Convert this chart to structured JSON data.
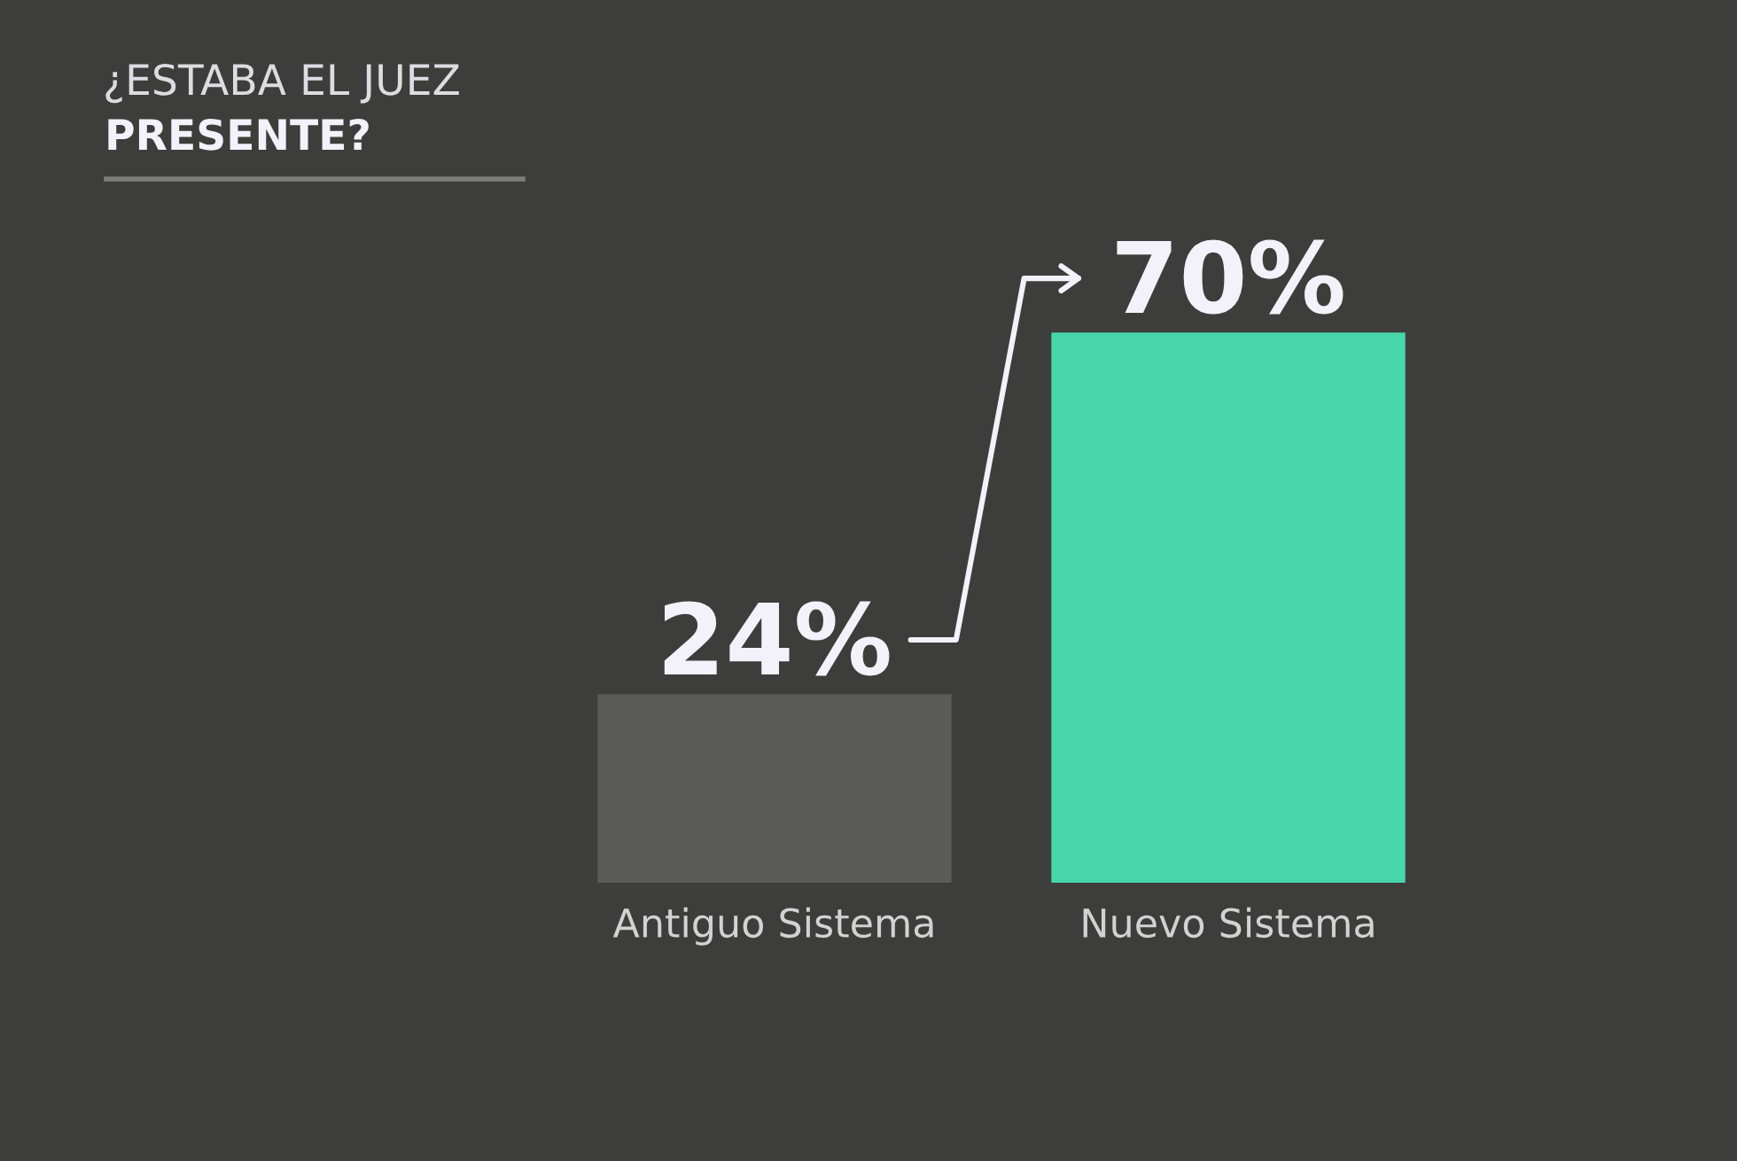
{
  "chart_data": {
    "type": "bar",
    "title": "¿ESTABA EL JUEZ",
    "subtitle": "PRESENTE?",
    "categories": [
      "Antiguo Sistema",
      "Nuevo Sistema"
    ],
    "values": [
      24,
      70
    ],
    "colors": [
      "#5a5b58",
      "#46d6aa"
    ],
    "value_labels": [
      "24%",
      "70%"
    ],
    "tick_labels": "x"
  }
}
